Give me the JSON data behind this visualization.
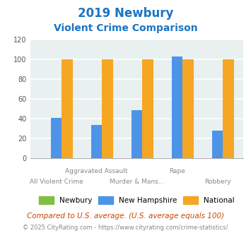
{
  "title_line1": "2019 Newbury",
  "title_line2": "Violent Crime Comparison",
  "categories": [
    "All Violent Crime",
    "Aggravated Assault",
    "Murder & Mans...",
    "Rape",
    "Robbery"
  ],
  "newbury": [
    0,
    0,
    0,
    0,
    0
  ],
  "new_hampshire": [
    41,
    34,
    49,
    103,
    28
  ],
  "national": [
    100,
    100,
    100,
    100,
    100
  ],
  "colors": {
    "newbury": "#80c040",
    "new_hampshire": "#4d94e8",
    "national": "#f5a623"
  },
  "ylim": [
    0,
    120
  ],
  "yticks": [
    0,
    20,
    40,
    60,
    80,
    100,
    120
  ],
  "top_labels": [
    "",
    "Aggravated Assault",
    "",
    "Rape",
    ""
  ],
  "bottom_labels": [
    "All Violent Crime",
    "",
    "Murder & Mans...",
    "",
    "Robbery"
  ],
  "background_color": "#e8f0f0",
  "grid_color": "#ffffff",
  "title_color": "#1a75c4",
  "xlabel_color": "#888888",
  "footnote1": "Compared to U.S. average. (U.S. average equals 100)",
  "footnote2": "© 2025 CityRating.com - https://www.cityrating.com/crime-statistics/",
  "footnote1_color": "#cc4400",
  "footnote2_color": "#888888",
  "legend_labels": [
    "Newbury",
    "New Hampshire",
    "National"
  ]
}
